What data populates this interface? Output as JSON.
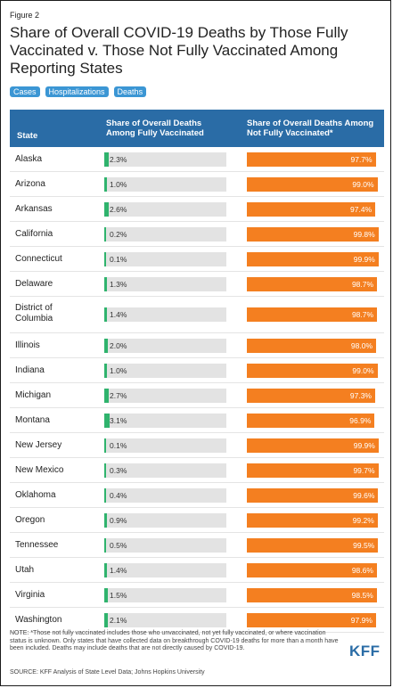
{
  "figure_label": "Figure 2",
  "title": "Share of Overall COVID-19 Deaths by Those Fully Vaccinated v. Those Not Fully Vaccinated Among Reporting States",
  "tabs": [
    "Cases",
    "Hospitalizations",
    "Deaths"
  ],
  "colors": {
    "header": "#2a6ca6",
    "tab": "#3b96d4",
    "fully_vaccinated_bar": "#2fb36d",
    "not_fully_vaccinated_bar": "#f47f20",
    "track": "#e3e3e3"
  },
  "chart_data": {
    "type": "table",
    "columns": [
      "State",
      "Share of Overall Deaths Among Fully Vaccinated",
      "Share of Overall Deaths Among Not Fully Vaccinated*"
    ],
    "rows": [
      {
        "state": "Alaska",
        "fully": 2.3,
        "fully_label": "2.3%",
        "not_fully": 97.7,
        "not_fully_label": "97.7%"
      },
      {
        "state": "Arizona",
        "fully": 1.0,
        "fully_label": "1.0%",
        "not_fully": 99.0,
        "not_fully_label": "99.0%"
      },
      {
        "state": "Arkansas",
        "fully": 2.6,
        "fully_label": "2.6%",
        "not_fully": 97.4,
        "not_fully_label": "97.4%"
      },
      {
        "state": "California",
        "fully": 0.2,
        "fully_label": "0.2%",
        "not_fully": 99.8,
        "not_fully_label": "99.8%"
      },
      {
        "state": "Connecticut",
        "fully": 0.1,
        "fully_label": "0.1%",
        "not_fully": 99.9,
        "not_fully_label": "99.9%"
      },
      {
        "state": "Delaware",
        "fully": 1.3,
        "fully_label": "1.3%",
        "not_fully": 98.7,
        "not_fully_label": "98.7%"
      },
      {
        "state": "District of Columbia",
        "fully": 1.4,
        "fully_label": "1.4%",
        "not_fully": 98.7,
        "not_fully_label": "98.7%"
      },
      {
        "state": "Illinois",
        "fully": 2.0,
        "fully_label": "2.0%",
        "not_fully": 98.0,
        "not_fully_label": "98.0%"
      },
      {
        "state": "Indiana",
        "fully": 1.0,
        "fully_label": "1.0%",
        "not_fully": 99.0,
        "not_fully_label": "99.0%"
      },
      {
        "state": "Michigan",
        "fully": 2.7,
        "fully_label": "2.7%",
        "not_fully": 97.3,
        "not_fully_label": "97.3%"
      },
      {
        "state": "Montana",
        "fully": 3.1,
        "fully_label": "3.1%",
        "not_fully": 96.9,
        "not_fully_label": "96.9%"
      },
      {
        "state": "New Jersey",
        "fully": 0.1,
        "fully_label": "0.1%",
        "not_fully": 99.9,
        "not_fully_label": "99.9%"
      },
      {
        "state": "New Mexico",
        "fully": 0.3,
        "fully_label": "0.3%",
        "not_fully": 99.7,
        "not_fully_label": "99.7%"
      },
      {
        "state": "Oklahoma",
        "fully": 0.4,
        "fully_label": "0.4%",
        "not_fully": 99.6,
        "not_fully_label": "99.6%"
      },
      {
        "state": "Oregon",
        "fully": 0.9,
        "fully_label": "0.9%",
        "not_fully": 99.2,
        "not_fully_label": "99.2%"
      },
      {
        "state": "Tennessee",
        "fully": 0.5,
        "fully_label": "0.5%",
        "not_fully": 99.5,
        "not_fully_label": "99.5%"
      },
      {
        "state": "Utah",
        "fully": 1.4,
        "fully_label": "1.4%",
        "not_fully": 98.6,
        "not_fully_label": "98.6%"
      },
      {
        "state": "Virginia",
        "fully": 1.5,
        "fully_label": "1.5%",
        "not_fully": 98.5,
        "not_fully_label": "98.5%"
      },
      {
        "state": "Washington",
        "fully": 2.1,
        "fully_label": "2.1%",
        "not_fully": 97.9,
        "not_fully_label": "97.9%"
      }
    ]
  },
  "note": "NOTE: *Those not fully vaccinated includes those who unvaccinated, not yet fully vaccinated, or where vaccination status is unknown. Only states that have collected data on breakthrough COVID-19 deaths for more than a month have been included. Deaths may include deaths that are not directly caused by COVID-19.",
  "source": "SOURCE: KFF Analysis of State Level Data; Johns Hopkins University",
  "logo": "KFF"
}
